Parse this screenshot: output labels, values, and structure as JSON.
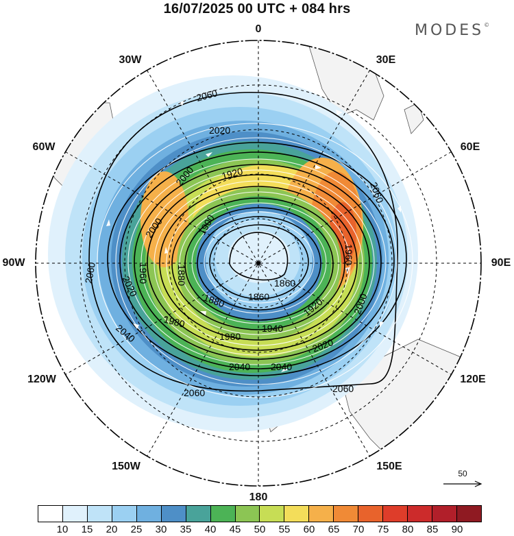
{
  "title": "16/07/2025  00 UTC  + 084 hrs",
  "brand": "MODES",
  "brand_mark": "©",
  "longitude_labels": [
    "0",
    "30E",
    "60E",
    "90E",
    "120E",
    "150E",
    "180",
    "150W",
    "120W",
    "90W",
    "60W",
    "30W"
  ],
  "contour_labels": [
    "2060",
    "2060",
    "2060",
    "2060",
    "2060",
    "2040",
    "2040",
    "2040",
    "2020",
    "2020",
    "2020",
    "2000",
    "2000",
    "2000",
    "1980",
    "1980",
    "1960",
    "1960",
    "1940",
    "1920",
    "1920",
    "1900",
    "1880",
    "1860",
    "1880",
    "1860"
  ],
  "reference_vector": "50",
  "colorbar": {
    "colors": [
      "#ffffff",
      "#e0f1fc",
      "#bfe3f8",
      "#9bd0f2",
      "#6fb0e0",
      "#4e8fc7",
      "#49a39a",
      "#4cb356",
      "#8cc554",
      "#c7dd55",
      "#f3dd5a",
      "#f5b04a",
      "#f08a36",
      "#e8632c",
      "#de3d2a",
      "#cc2b2b",
      "#b11f2a",
      "#8f1a22"
    ],
    "tick_labels": [
      "10",
      "15",
      "20",
      "25",
      "30",
      "35",
      "40",
      "45",
      "50",
      "55",
      "60",
      "65",
      "70",
      "75",
      "80",
      "85",
      "90"
    ]
  },
  "colors": {
    "land": "#f3f3f3",
    "coast": "#555555",
    "contour": "#000000",
    "streamline": "#ffffff"
  }
}
